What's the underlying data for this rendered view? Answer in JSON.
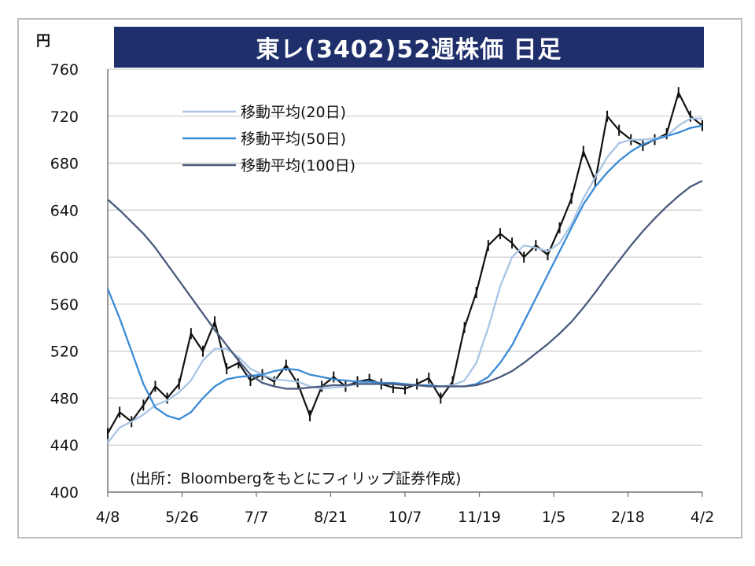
{
  "title": "東レ(3402)52週株価 日足",
  "unit_label": "円",
  "source_note": "(出所：Bloombergをもとにフィリップ証券作成)",
  "colors": {
    "title_bg": "#1f2f6b",
    "candle": "#111111",
    "ma20": "#a9c4e6",
    "ma50": "#3a8ad6",
    "ma100": "#4a5a7e",
    "grid": "#d0d0d0"
  },
  "chart_data": {
    "type": "line",
    "title": "東レ(3402)52週株価 日足",
    "ylabel": "円",
    "ylim": [
      400,
      760
    ],
    "yticks": [
      400,
      440,
      480,
      520,
      560,
      600,
      640,
      680,
      720,
      760
    ],
    "x_tick_labels": [
      "4/8",
      "5/26",
      "7/7",
      "8/21",
      "10/7",
      "11/19",
      "1/5",
      "2/18",
      "4/2"
    ],
    "grid": "horizontal",
    "legend_position": "top-left",
    "x": [
      0,
      5,
      10,
      15,
      20,
      25,
      30,
      35,
      40,
      45,
      50,
      55,
      60,
      65,
      70,
      75,
      80,
      85,
      90,
      95,
      100,
      105,
      110,
      115,
      120,
      125,
      130,
      135,
      140,
      145,
      150,
      155,
      160,
      165,
      170,
      175,
      180,
      185,
      190,
      195,
      200,
      205,
      210,
      215,
      220,
      225,
      230,
      235,
      240,
      245,
      250
    ],
    "price": [
      450,
      468,
      460,
      474,
      490,
      480,
      492,
      535,
      520,
      545,
      505,
      510,
      495,
      500,
      494,
      508,
      492,
      465,
      490,
      498,
      490,
      494,
      496,
      492,
      489,
      488,
      492,
      497,
      480,
      494,
      540,
      570,
      610,
      620,
      612,
      600,
      610,
      602,
      625,
      650,
      690,
      665,
      720,
      708,
      700,
      695,
      700,
      705,
      740,
      720,
      712
    ],
    "series": [
      {
        "name": "移動平均(20日)",
        "values": [
          442,
          455,
          460,
          466,
          474,
          478,
          485,
          495,
          512,
          522,
          522,
          515,
          505,
          500,
          496,
          495,
          494,
          490,
          488,
          489,
          490,
          492,
          493,
          493,
          492,
          492,
          491,
          490,
          490,
          491,
          495,
          510,
          540,
          575,
          600,
          610,
          608,
          605,
          612,
          628,
          650,
          668,
          685,
          697,
          700,
          700,
          701,
          703,
          712,
          718,
          718
        ]
      },
      {
        "name": "移動平均(50日)",
        "values": [
          573,
          548,
          520,
          492,
          472,
          465,
          462,
          468,
          480,
          490,
          496,
          498,
          499,
          500,
          503,
          505,
          504,
          500,
          498,
          496,
          495,
          494,
          494,
          493,
          493,
          492,
          491,
          491,
          490,
          490,
          490,
          492,
          498,
          510,
          525,
          545,
          565,
          585,
          605,
          625,
          645,
          660,
          672,
          682,
          690,
          696,
          700,
          703,
          706,
          710,
          712
        ]
      },
      {
        "name": "移動平均(100日)",
        "values": [
          649,
          640,
          630,
          620,
          608,
          594,
          580,
          566,
          552,
          538,
          525,
          512,
          500,
          493,
          490,
          488,
          488,
          489,
          490,
          491,
          491,
          492,
          492,
          492,
          492,
          491,
          491,
          490,
          490,
          490,
          490,
          491,
          494,
          498,
          503,
          510,
          518,
          526,
          535,
          545,
          557,
          570,
          584,
          597,
          610,
          622,
          633,
          643,
          652,
          660,
          665
        ]
      }
    ]
  }
}
